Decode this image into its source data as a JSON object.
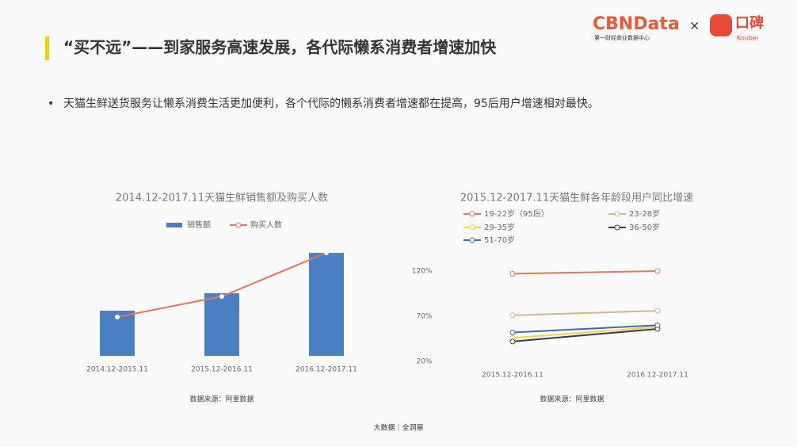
{
  "header": {
    "title": "“买不远”——到家服务高速发展，各代际懒系消费者增速加快",
    "logo": "CBNData",
    "logo_sub": "第一财经商业数据中心",
    "times": "×",
    "partner": "口碑",
    "partner_sub": "Koubei"
  },
  "bullet": "天猫生鲜送货服务让懒系消费生活更加便利，各个代际的懒系消费者增速都在提高，95后用户增速相对最快。",
  "footer": "大数据｜全洞察",
  "chart_data": [
    {
      "type": "bar",
      "title": "2014.12-2017.11天猫生鲜销售额及购买人数",
      "source": "数据来源：阿里数据",
      "categories": [
        "2014.12-2015.11",
        "2015.12-2016.11",
        "2016.12-2017.11"
      ],
      "ylim": [
        0,
        140
      ],
      "series": [
        {
          "name": "销售额",
          "type": "bar",
          "color": "#4a7fc4",
          "values": [
            57,
            79,
            130
          ]
        },
        {
          "name": "购买人数",
          "type": "line",
          "color": "#e8735a",
          "values": [
            49,
            75,
            130
          ]
        }
      ]
    },
    {
      "type": "line",
      "title": "2015.12-2017.11天猫生鲜各年龄段用户同比增速",
      "source": "数据来源：阿里数据",
      "categories": [
        "2015.12-2016.11",
        "2016.12-2017.11"
      ],
      "ylim": [
        20,
        120
      ],
      "yticks": [
        {
          "value": 20,
          "label": "20%"
        },
        {
          "value": 70,
          "label": "70%"
        },
        {
          "value": 120,
          "label": "120%"
        }
      ],
      "series": [
        {
          "name": "19-22岁（95后）",
          "color": "#e8735a",
          "values": [
            117,
            120
          ]
        },
        {
          "name": "23-28岁",
          "color": "#c9b98a",
          "values": [
            71,
            76
          ]
        },
        {
          "name": "29-35岁",
          "color": "#f2d35a",
          "values": [
            46,
            58
          ]
        },
        {
          "name": "36-50岁",
          "color": "#3a3a3a",
          "values": [
            42,
            56
          ]
        },
        {
          "name": "51-70岁",
          "color": "#3e6aa8",
          "values": [
            52,
            60
          ]
        }
      ]
    }
  ]
}
